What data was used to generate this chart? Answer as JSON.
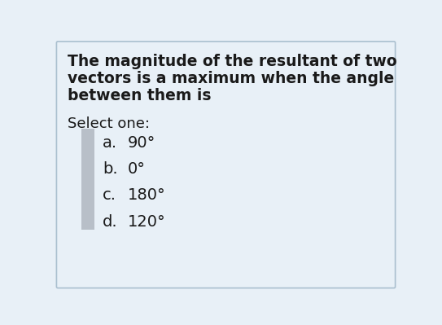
{
  "bg_color": "#e8f0f7",
  "border_color": "#aabfcf",
  "text_color": "#1a1a1a",
  "question_lines": [
    "The magnitude of the resultant of two",
    "vectors is a maximum when the angle",
    "between them is"
  ],
  "select_label": "Select one:",
  "options": [
    {
      "letter": "a.",
      "value": "90°"
    },
    {
      "letter": "b.",
      "value": "0°"
    },
    {
      "letter": "c.",
      "value": "180°"
    },
    {
      "letter": "d.",
      "value": "120°"
    }
  ],
  "option_bar_color": "#b8bfc8",
  "question_fontsize": 13.5,
  "select_fontsize": 13,
  "option_fontsize": 14,
  "fig_width": 5.43,
  "fig_height": 3.99,
  "dpi": 100
}
